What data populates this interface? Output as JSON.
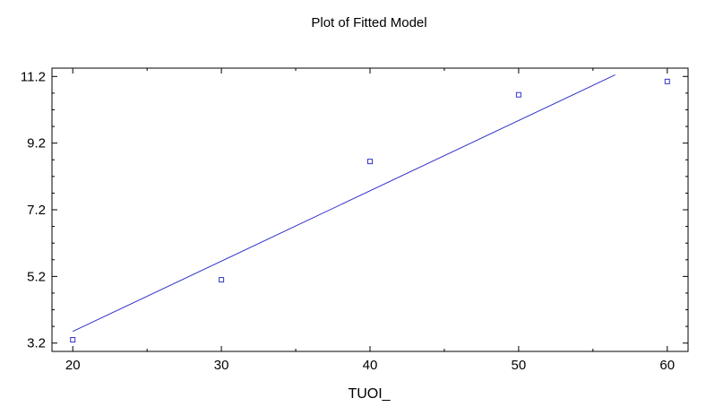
{
  "chart_data": {
    "type": "scatter",
    "title": "Plot of Fitted Model",
    "xlabel": "TUOI_",
    "ylabel": "",
    "xlim": [
      18.6,
      61.4
    ],
    "ylim": [
      2.95,
      11.45
    ],
    "x_ticks": [
      "20",
      "30",
      "40",
      "50",
      "60"
    ],
    "y_ticks": [
      "3.2",
      "5.2",
      "7.2",
      "9.2",
      "11.2"
    ],
    "grid": false,
    "legend": "none",
    "points": [
      {
        "x": 20,
        "y": 3.3
      },
      {
        "x": 30,
        "y": 5.1
      },
      {
        "x": 40,
        "y": 8.65
      },
      {
        "x": 50,
        "y": 10.65
      },
      {
        "x": 60,
        "y": 11.05
      }
    ],
    "fitted_line": {
      "x": [
        20,
        56.5
      ],
      "y": [
        3.55,
        11.25
      ]
    },
    "colors": {
      "points": "#3333cc",
      "line": "#3333cc",
      "axes": "#000000"
    }
  }
}
